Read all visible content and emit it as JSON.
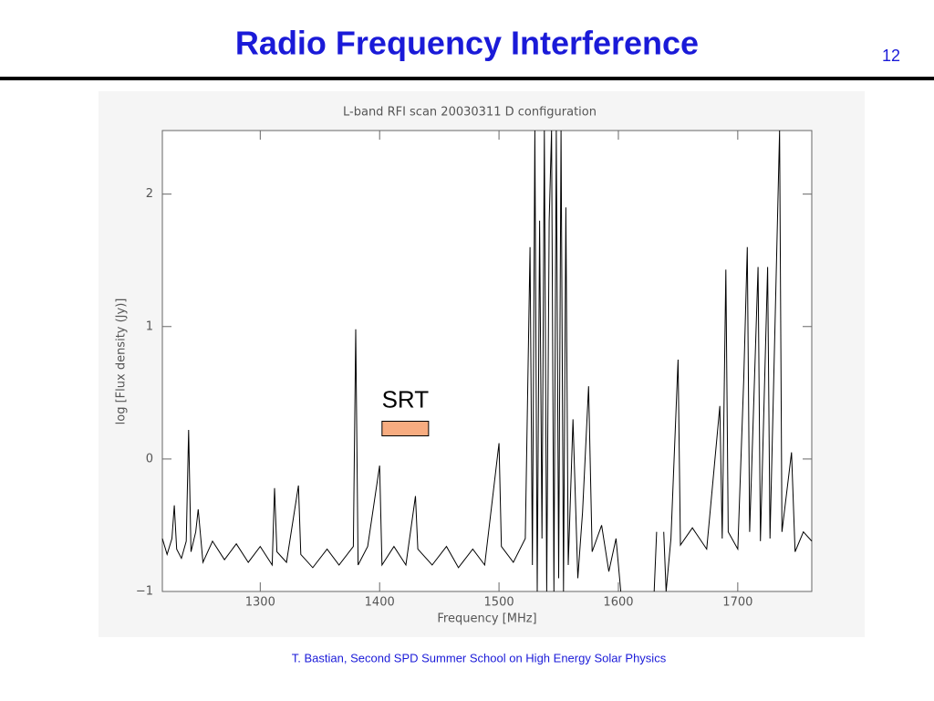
{
  "slide": {
    "title": "Radio Frequency Interference",
    "page_number": "12",
    "footer": "T. Bastian, Second SPD Summer School on High Energy Solar Physics"
  },
  "chart_data": {
    "type": "line",
    "title": "L-band RFI scan  20030311 D configuration",
    "xlabel": "Frequency [MHz]",
    "ylabel": "log [Flux density (Jy)]",
    "xlim": [
      1218,
      1762
    ],
    "xticks": [
      1300,
      1400,
      1500,
      1600,
      1700
    ],
    "ylim": [
      -1,
      2.48
    ],
    "yticks": [
      {
        "value": -1,
        "label": "−1"
      },
      0,
      1,
      2
    ],
    "series": [
      {
        "name": "Flux density",
        "color": "#000000",
        "x": [
          1218,
          1222,
          1226,
          1228,
          1230,
          1234,
          1238,
          1240,
          1242,
          1246,
          1248,
          1252,
          1260,
          1270,
          1280,
          1290,
          1300,
          1310,
          1312,
          1314,
          1322,
          1332,
          1334,
          1344,
          1356,
          1366,
          1378,
          1380,
          1382,
          1390,
          1400,
          1402,
          1412,
          1422,
          1430,
          1432,
          1444,
          1456,
          1466,
          1478,
          1488,
          1500,
          1502,
          1512,
          1522,
          1526,
          1528,
          1530,
          1532,
          1534,
          1536,
          1538,
          1540,
          1542,
          1544,
          1546,
          1548,
          1550,
          1552,
          1554,
          1556,
          1558,
          1562,
          1566,
          1570,
          1575,
          1578,
          1586,
          1592,
          1598,
          1602,
          1615,
          1630,
          1632,
          1635,
          1638,
          1640,
          1644,
          1650,
          1652,
          1662,
          1674,
          1685,
          1687,
          1690,
          1692,
          1700,
          1705,
          1708,
          1710,
          1717,
          1719,
          1725,
          1727,
          1735,
          1737,
          1745,
          1748,
          1755,
          1762
        ],
        "values": [
          -0.6,
          -0.72,
          -0.6,
          -0.35,
          -0.68,
          -0.75,
          -0.62,
          0.22,
          -0.7,
          -0.55,
          -0.38,
          -0.78,
          -0.62,
          -0.76,
          -0.64,
          -0.78,
          -0.66,
          -0.8,
          -0.22,
          -0.7,
          -0.78,
          -0.2,
          -0.72,
          -0.82,
          -0.68,
          -0.8,
          -0.66,
          0.98,
          -0.8,
          -0.66,
          -0.05,
          -0.8,
          -0.66,
          -0.8,
          -0.28,
          -0.68,
          -0.8,
          -0.66,
          -0.82,
          -0.68,
          -0.8,
          0.12,
          -0.66,
          -0.78,
          -0.6,
          1.6,
          -0.8,
          2.48,
          -1,
          1.8,
          -0.6,
          2.48,
          -1,
          1.8,
          2.48,
          -1,
          2.48,
          -0.9,
          2.48,
          -1,
          1.9,
          -0.8,
          0.3,
          -0.9,
          -0.4,
          0.55,
          -0.7,
          -0.5,
          -0.85,
          -0.6,
          -1,
          null,
          -1,
          -0.55,
          null,
          -0.55,
          -1,
          -0.6,
          0.75,
          -0.65,
          -0.52,
          -0.68,
          0.4,
          -0.6,
          1.43,
          -0.55,
          -0.68,
          0.6,
          1.6,
          -0.55,
          1.45,
          -0.62,
          1.45,
          -0.6,
          2.48,
          -0.55,
          0.05,
          -0.7,
          -0.55,
          -0.62
        ]
      }
    ],
    "annotations": [
      {
        "text": "SRT",
        "x": [
          1402,
          1441
        ],
        "y": 0.23,
        "color": "#f7ac80"
      }
    ]
  }
}
